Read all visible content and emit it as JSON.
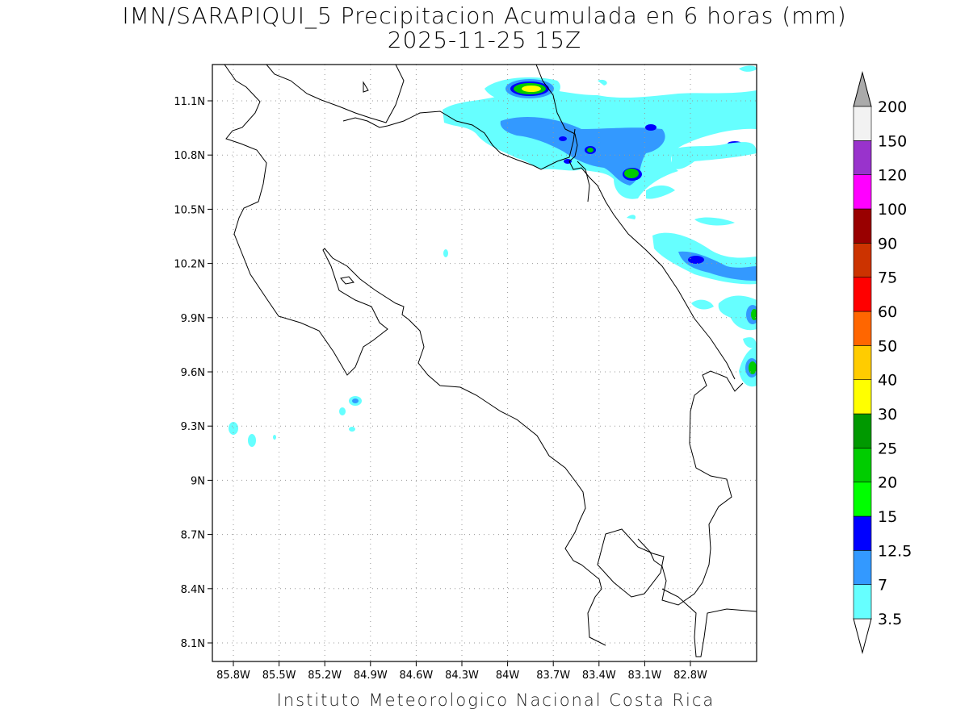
{
  "title": {
    "line1": "IMN/SARAPIQUI_5 Precipitacion Acumulada en 6 horas (mm)",
    "line2": "2025-11-25 15Z"
  },
  "footer": "Instituto Meteorologico Nacional Costa Rica",
  "map": {
    "lon_range": [
      -86.05,
      -82.45
    ],
    "lat_range": [
      8.0,
      11.3
    ],
    "x_ticks": [
      "85.8W",
      "85.5W",
      "85.2W",
      "84.9W",
      "84.6W",
      "84.3W",
      "84W",
      "83.7W",
      "83.4W",
      "83.1W",
      "82.8W"
    ],
    "y_ticks": [
      "11.1N",
      "10.8N",
      "10.5N",
      "10.2N",
      "9.9N",
      "9.6N",
      "9.3N",
      "9N",
      "8.7N",
      "8.4N",
      "8.1N"
    ],
    "grid": "dotted"
  },
  "colorbar": {
    "labels": [
      "3.5",
      "7",
      "12.5",
      "15",
      "20",
      "25",
      "30",
      "40",
      "50",
      "60",
      "75",
      "90",
      "100",
      "120",
      "150",
      "200"
    ],
    "colors": [
      "#66ffff",
      "#3399ff",
      "#0000ff",
      "#00ff00",
      "#00cc00",
      "#009900",
      "#ffff00",
      "#ffcc00",
      "#ff6600",
      "#ff0000",
      "#cc3300",
      "#990000",
      "#ff00ff",
      "#9933cc",
      "#f2f2f2"
    ],
    "top_arrow_color": "#aaaaaa"
  },
  "legend_colors": {
    "c1": "#66ffff",
    "c2": "#3399ff",
    "c3": "#0000ff",
    "c4": "#00ff00",
    "c5": "#00cc00",
    "c6": "#009900",
    "c7": "#ffff00"
  }
}
